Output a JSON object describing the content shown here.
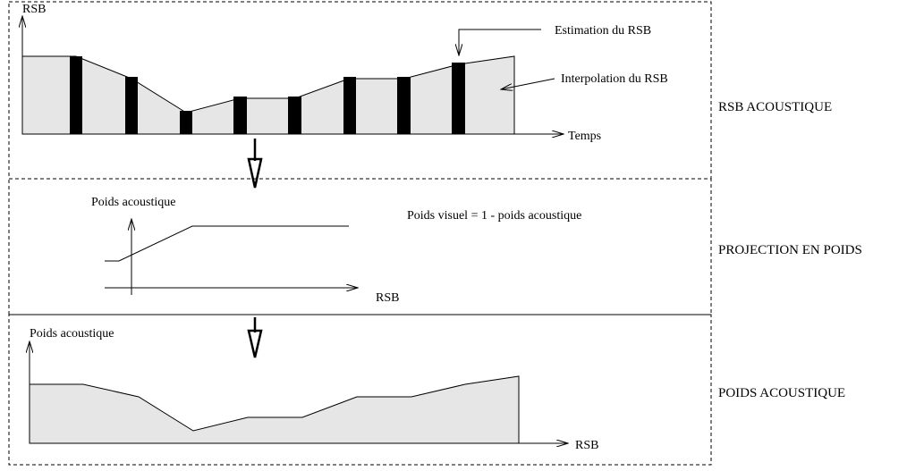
{
  "panels": [
    {
      "label": "RSB ACOUSTIQUE",
      "y_axis": "RSB",
      "x_axis": "Temps",
      "annotations": [
        "Estimation du RSB",
        "Interpolation du RSB"
      ]
    },
    {
      "label": "PROJECTION EN POIDS",
      "y_axis": "Poids acoustique",
      "x_axis": "RSB",
      "annotations": [
        "Poids visuel = 1 - poids acoustique"
      ]
    },
    {
      "label": "POIDS ACOUSTIQUE",
      "y_axis": "Poids acoustique",
      "x_axis": "RSB"
    }
  ]
}
